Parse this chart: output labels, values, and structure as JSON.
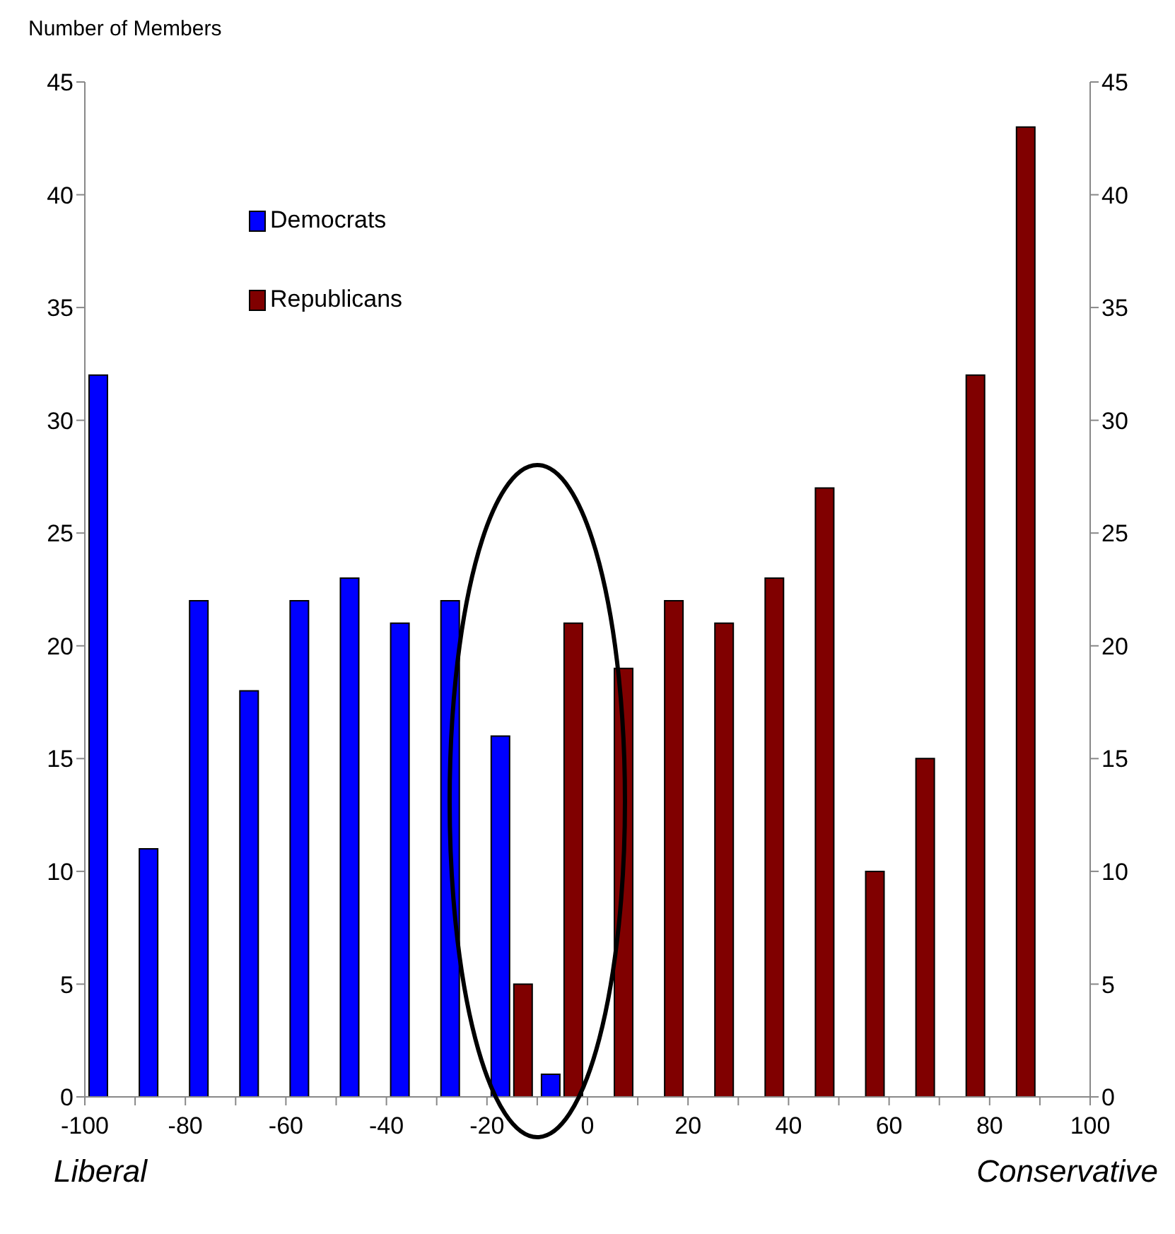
{
  "chart_data": {
    "type": "histogram",
    "ylabel": "Number of Members",
    "bins": [
      -100,
      -90,
      -80,
      -70,
      -60,
      -50,
      -40,
      -30,
      -20,
      -10,
      0,
      10,
      20,
      30,
      40,
      50,
      60,
      70,
      80,
      90,
      100
    ],
    "series": [
      {
        "name": "Democrats",
        "color": "#0000ff",
        "values": [
          32,
          11,
          22,
          18,
          22,
          23,
          21,
          22,
          16,
          1,
          0,
          0,
          0,
          0,
          0,
          0,
          0,
          0,
          0,
          0
        ]
      },
      {
        "name": "Republicans",
        "color": "#800000",
        "values": [
          0,
          0,
          0,
          0,
          0,
          0,
          0,
          0,
          5,
          21,
          19,
          22,
          21,
          23,
          27,
          10,
          15,
          32,
          43,
          0
        ]
      }
    ],
    "xlim": [
      -100,
      100
    ],
    "xticks": [
      -100,
      {
        "value": -90,
        "label": null
      },
      -80,
      {
        "value": -70,
        "label": null
      },
      -60,
      {
        "value": -50,
        "label": null
      },
      -40,
      {
        "value": -30,
        "label": null
      },
      -20,
      {
        "value": -10,
        "label": null
      },
      0,
      {
        "value": 10,
        "label": null
      },
      20,
      {
        "value": 30,
        "label": null
      },
      40,
      {
        "value": 50,
        "label": null
      },
      60,
      {
        "value": 70,
        "label": null
      },
      80,
      {
        "value": 90,
        "label": null
      },
      100
    ],
    "ylim": [
      0,
      45
    ],
    "yticks": [
      0,
      5,
      10,
      15,
      20,
      25,
      30,
      35,
      40,
      45
    ],
    "y2lim": [
      0,
      45
    ],
    "y2ticks": [
      0,
      5,
      10,
      15,
      20,
      25,
      30,
      35,
      40,
      45
    ],
    "annotations": [
      "Liberal",
      "Conservative"
    ],
    "legend": "top left",
    "grid": false
  }
}
